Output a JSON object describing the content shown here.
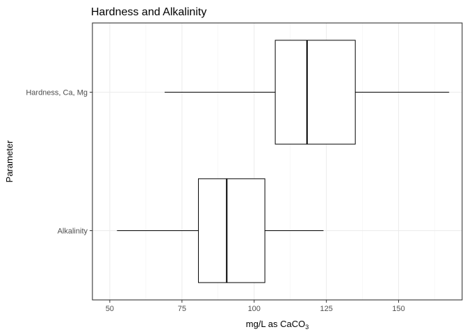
{
  "chart_data": {
    "type": "boxplot",
    "title": "Hardness and Alkalinity",
    "xlabel_main": "mg/L as CaCO",
    "xlabel_sub": "3",
    "ylabel": "Parameter",
    "orientation": "horizontal",
    "xlim": [
      44,
      172
    ],
    "x_ticks": [
      50,
      75,
      100,
      125,
      150
    ],
    "x_tick_labels": [
      "50",
      "75",
      "100",
      "125",
      "150"
    ],
    "grid": true,
    "legend": "none",
    "categories": [
      "Alkalinity",
      "Hardness, Ca, Mg"
    ],
    "series": [
      {
        "category": "Alkalinity",
        "whisker_low": 52.5,
        "q1": 80.7,
        "median": 90.5,
        "q3": 103.7,
        "whisker_high": 124
      },
      {
        "category": "Hardness, Ca, Mg",
        "whisker_low": 69,
        "q1": 107.3,
        "median": 118.3,
        "q3": 135,
        "whisker_high": 167.5
      }
    ]
  }
}
